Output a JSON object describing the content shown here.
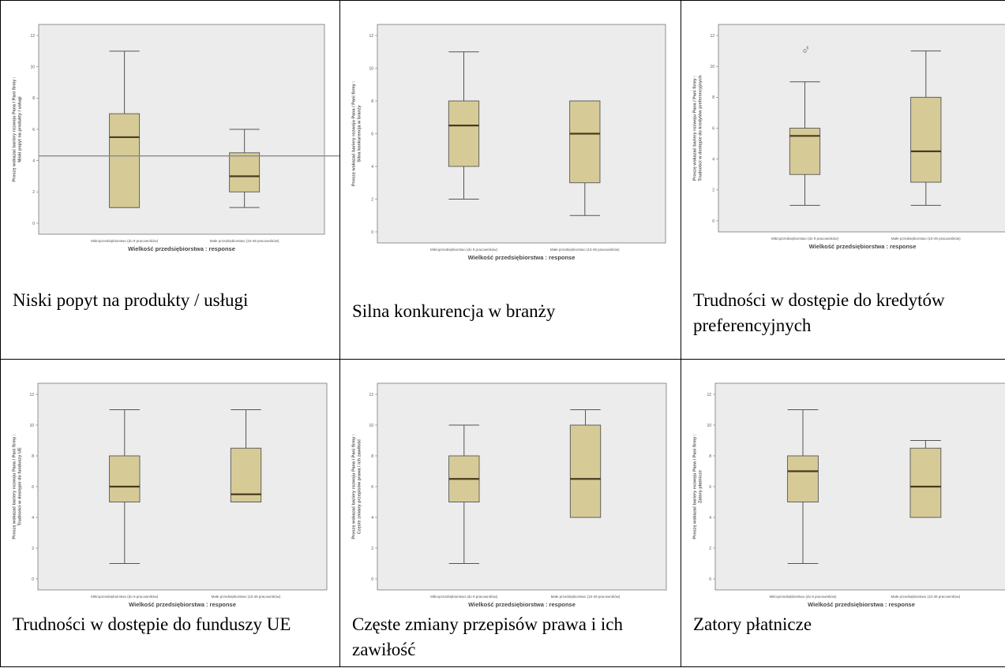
{
  "colors": {
    "box_fill": "#d6cb97",
    "box_stroke": "#555555",
    "median": "#4a3b1e",
    "plot_bg": "#ececec",
    "refline": "#8a8a8a"
  },
  "shared": {
    "xlabel": "Wielkość przedsiębiorstwa : response",
    "categories": [
      "Mikroprzedsiębiorstwo (do 9 pracowników)",
      "Małe przedsiębiorstwo (10-49 pracowników)"
    ],
    "y_ticks": [
      0,
      2,
      4,
      6,
      8,
      10,
      12
    ]
  },
  "chart_data": [
    {
      "type": "boxplot",
      "caption": "Niski popyt na produkty / usługi",
      "ylabel": "Proszę wskazać bariery rozwoju Pana / Pani firmy : Niski popyt na produkty / usługi",
      "ylim": [
        0,
        12
      ],
      "refline": 4.3,
      "boxes": [
        {
          "min": 1,
          "q1": 1,
          "median": 5.5,
          "q3": 7,
          "max": 11
        },
        {
          "min": 1,
          "q1": 2,
          "median": 3,
          "q3": 4.5,
          "max": 6
        }
      ]
    },
    {
      "type": "boxplot",
      "caption": "Silna konkurencja w branży",
      "ylabel": "Proszę wskazać bariery rozwoju Pana / Pani firmy : Silna konkurencja w branży",
      "ylim": [
        0,
        12
      ],
      "boxes": [
        {
          "min": 2,
          "q1": 4,
          "median": 6.5,
          "q3": 8,
          "max": 11
        },
        {
          "min": 1,
          "q1": 3,
          "median": 6,
          "q3": 8,
          "max": 8
        }
      ]
    },
    {
      "type": "boxplot",
      "caption": "Trudności w dostępie do kredytów preferencyjnych",
      "ylabel": "Proszę wskazać bariery rozwoju Pana / Pani firmy : Trudności w dostępie do kredytów preferencyjnych",
      "ylim": [
        0,
        12
      ],
      "outlier_label": "6",
      "boxes": [
        {
          "min": 1,
          "q1": 3,
          "median": 5.5,
          "q3": 6,
          "max": 9,
          "outliers": [
            11
          ]
        },
        {
          "min": 1,
          "q1": 2.5,
          "median": 4.5,
          "q3": 8,
          "max": 11
        }
      ]
    },
    {
      "type": "boxplot",
      "caption": "Trudności w dostępie do funduszy UE",
      "ylabel": "Proszę wskazać bariery rozwoju Pana / Pani firmy : Trudności w dostępie do funduszy UE",
      "ylim": [
        0,
        12
      ],
      "boxes": [
        {
          "min": 1,
          "q1": 5,
          "median": 6,
          "q3": 8,
          "max": 11
        },
        {
          "min": 5,
          "q1": 5,
          "median": 5.5,
          "q3": 8.5,
          "max": 11
        }
      ]
    },
    {
      "type": "boxplot",
      "caption": "Częste zmiany przepisów prawa i ich zawiłość",
      "ylabel": "Proszę wskazać bariery rozwoju Pana / Pani firmy : Częste zmiany przepisów prawa i ich zawiłość",
      "ylim": [
        0,
        12
      ],
      "boxes": [
        {
          "min": 1,
          "q1": 5,
          "median": 6.5,
          "q3": 8,
          "max": 10
        },
        {
          "min": 4,
          "q1": 4,
          "median": 6.5,
          "q3": 10,
          "max": 11
        }
      ]
    },
    {
      "type": "boxplot",
      "caption": "Zatory płatnicze",
      "ylabel": "Proszę wskazać bariery rozwoju Pana / Pani firmy : Zatory płatnicze",
      "ylim": [
        0,
        12
      ],
      "boxes": [
        {
          "min": 1,
          "q1": 5,
          "median": 7,
          "q3": 8,
          "max": 11
        },
        {
          "min": 4,
          "q1": 4,
          "median": 6,
          "q3": 8.5,
          "max": 9
        }
      ]
    }
  ]
}
